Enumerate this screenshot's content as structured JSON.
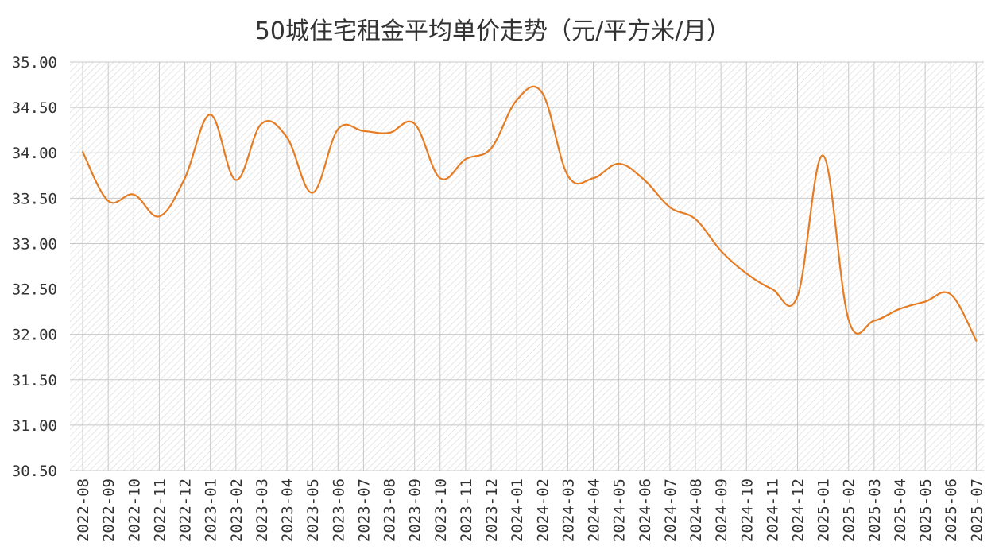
{
  "chart_data": {
    "type": "line",
    "title": "50城住宅租金平均单价走势（元/平方米/月）",
    "xlabel": "",
    "ylabel": "",
    "ylim": [
      30.5,
      35.0
    ],
    "yticks": [
      "35.00",
      "34.50",
      "34.00",
      "33.50",
      "33.00",
      "32.50",
      "32.00",
      "31.50",
      "31.00",
      "30.50"
    ],
    "grid": true,
    "legend": "none",
    "categories": [
      "2022-08",
      "2022-09",
      "2022-10",
      "2022-11",
      "2022-12",
      "2023-01",
      "2023-02",
      "2023-03",
      "2023-04",
      "2023-05",
      "2023-06",
      "2023-07",
      "2023-08",
      "2023-09",
      "2023-10",
      "2023-11",
      "2023-12",
      "2024-01",
      "2024-02",
      "2024-03",
      "2024-04",
      "2024-05",
      "2024-06",
      "2024-07",
      "2024-08",
      "2024-09",
      "2024-10",
      "2024-11",
      "2024-12",
      "2025-01",
      "2025-02",
      "2025-03",
      "2025-04",
      "2025-05",
      "2025-06",
      "2025-07"
    ],
    "series": [
      {
        "values": [
          34.01,
          33.47,
          33.54,
          33.3,
          33.72,
          34.42,
          33.7,
          34.32,
          34.17,
          33.56,
          34.26,
          34.24,
          34.22,
          34.32,
          33.72,
          33.93,
          34.05,
          34.58,
          34.66,
          33.75,
          33.72,
          33.88,
          33.7,
          33.4,
          33.27,
          32.92,
          32.67,
          32.5,
          32.42,
          33.97,
          32.16,
          32.15,
          32.28,
          32.36,
          32.44,
          31.93
        ],
        "color": "#E57C24"
      }
    ]
  }
}
